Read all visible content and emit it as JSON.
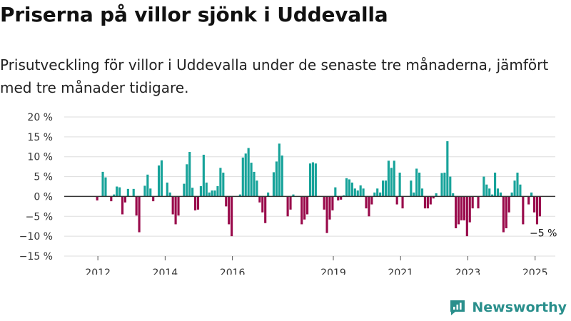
{
  "title": "Priserna på villor sjönk i Uddevalla",
  "subtitle": "Prisutveckling för villor i Uddevalla under de senaste tre månaderna, jämfört med tre månader tidigare.",
  "brand": {
    "name": "Newsworthy",
    "icon": "newsworthy-logo-icon"
  },
  "colors": {
    "positive": "#17a39a",
    "negative": "#990a4b",
    "zero_line": "#333333",
    "grid": "#dddddd"
  },
  "chart_data": {
    "type": "bar",
    "ylim": [
      -15,
      20
    ],
    "yticks": [
      -15,
      -10,
      -5,
      0,
      5,
      10,
      15,
      20
    ],
    "ytick_labels": [
      "−15 %",
      "−10 %",
      "−5 %",
      "0 %",
      "5 %",
      "10 %",
      "15 %",
      "20 %"
    ],
    "xlim": [
      2011.0,
      2025.6
    ],
    "xticks": [
      2012,
      2014,
      2016,
      2019,
      2021,
      2023,
      2025
    ],
    "xtick_labels": [
      "2012",
      "2014",
      "2016",
      "2019",
      "2021",
      "2023",
      "2025"
    ],
    "grid": true,
    "x_start": 2011.98,
    "x_step": 0.0833,
    "values": [
      -1.0,
      0.0,
      6.2,
      4.8,
      0.0,
      -1.2,
      0.5,
      2.5,
      2.3,
      -4.5,
      -1.5,
      1.9,
      0.0,
      1.9,
      -4.8,
      -9.0,
      0.0,
      2.7,
      5.5,
      2.0,
      -1.2,
      0.0,
      7.8,
      9.1,
      0.0,
      3.5,
      1.0,
      -4.5,
      -7.0,
      -4.8,
      0.0,
      3.2,
      8.1,
      11.2,
      2.2,
      -3.5,
      -3.3,
      2.6,
      10.5,
      3.5,
      1.0,
      1.5,
      1.5,
      2.6,
      7.2,
      6.0,
      -2.5,
      -7.0,
      -10.0,
      0.0,
      0.0,
      0.5,
      9.8,
      10.8,
      12.2,
      8.5,
      6.2,
      4.0,
      -1.5,
      -4.0,
      -6.7,
      1.0,
      0.0,
      6.1,
      8.8,
      13.3,
      10.3,
      0.0,
      -5.0,
      -3.3,
      0.5,
      0.0,
      0.0,
      -7.0,
      -5.8,
      -4.5,
      8.3,
      8.6,
      8.3,
      0.0,
      0.0,
      -3.3,
      -9.2,
      -5.8,
      -3.5,
      2.3,
      -1.0,
      -0.8,
      0.3,
      4.6,
      4.3,
      3.5,
      2.0,
      1.5,
      2.8,
      2.0,
      -3.0,
      -5.0,
      -2.0,
      1.0,
      2.0,
      1.0,
      4.0,
      4.0,
      9.0,
      7.2,
      9.0,
      -2.0,
      6.0,
      -3.0,
      0.0,
      0.0,
      4.0,
      1.0,
      7.0,
      6.0,
      2.0,
      -3.0,
      -3.0,
      -2.0,
      -0.5,
      0.8,
      0.0,
      5.9,
      6.0,
      13.9,
      5.0,
      0.8,
      -8.0,
      -7.0,
      -6.0,
      -6.0,
      -10.0,
      -6.5,
      -3.0,
      0.0,
      -3.0,
      0.0,
      5.0,
      3.0,
      2.0,
      0.5,
      6.0,
      2.0,
      1.0,
      -9.0,
      -8.0,
      -4.0,
      1.0,
      4.0,
      6.0,
      3.0,
      -7.0,
      0.0,
      -2.0,
      1.0,
      -4.0,
      -7.0,
      -5.0
    ],
    "annotation": {
      "text": "−5 %",
      "value": -5
    }
  }
}
